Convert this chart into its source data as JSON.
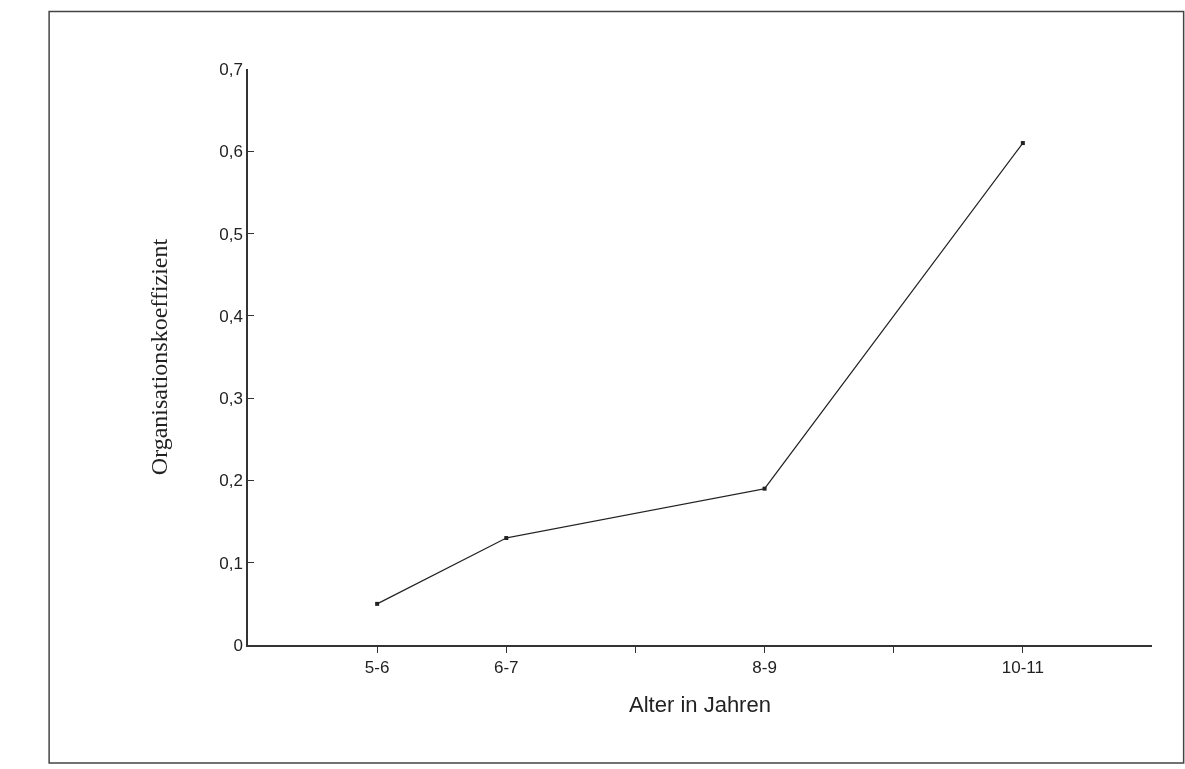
{
  "chart_data": {
    "type": "line",
    "xlabel": "Alter in Jahren",
    "ylabel": "Organisationskoeffizient",
    "categories": [
      "5-6",
      "6-7",
      null,
      "8-9",
      null,
      "10-11"
    ],
    "series": [
      {
        "values": [
          0.05,
          0.13,
          null,
          0.19,
          null,
          0.61
        ],
        "color": "#222222"
      }
    ],
    "ylim": [
      0,
      0.7
    ],
    "yticks": [
      {
        "value": 0,
        "label": "0"
      },
      {
        "value": 0.1,
        "label": "0,1"
      },
      {
        "value": 0.2,
        "label": "0,2"
      },
      {
        "value": 0.3,
        "label": "0,3"
      },
      {
        "value": 0.4,
        "label": "0,4"
      },
      {
        "value": 0.5,
        "label": "0,5"
      },
      {
        "value": 0.6,
        "label": "0,6"
      },
      {
        "value": 0.7,
        "label": "0,7"
      }
    ],
    "marker": "square",
    "line_style": "solid"
  }
}
